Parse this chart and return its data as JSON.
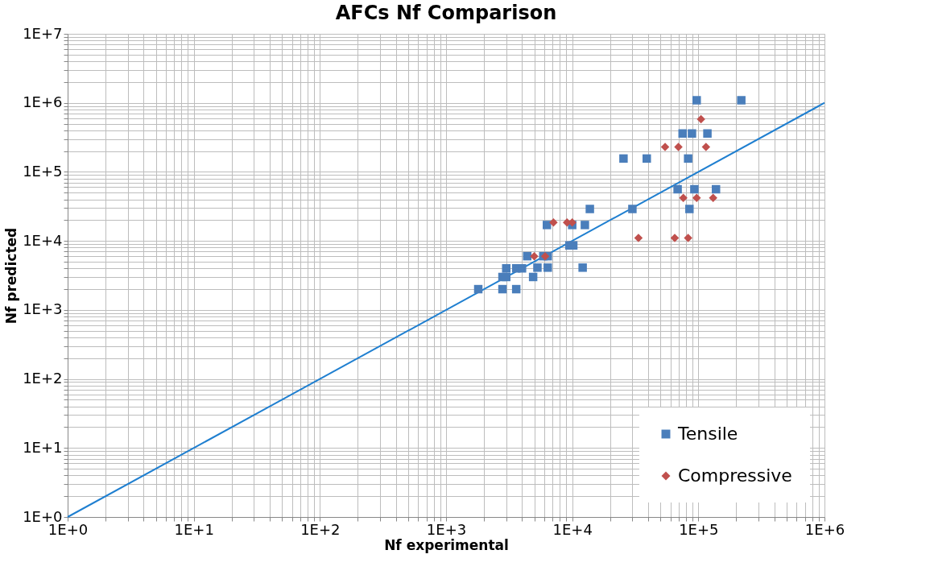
{
  "chart_data": {
    "type": "scatter",
    "title": "AFCs Nf Comparison",
    "xlabel": "Nf experimental",
    "ylabel": "Nf predicted",
    "log": "xy",
    "grid": true,
    "legend": "bottom right",
    "xlim": [
      1,
      1000000
    ],
    "ylim": [
      1,
      10000000
    ],
    "xticks": [
      {
        "value": 1,
        "label": "1E+0"
      },
      {
        "value": 10,
        "label": "1E+1"
      },
      {
        "value": 100,
        "label": "1E+2"
      },
      {
        "value": 1000,
        "label": "1E+3"
      },
      {
        "value": 10000,
        "label": "1E+4"
      },
      {
        "value": 100000,
        "label": "1E+5"
      },
      {
        "value": 1000000,
        "label": "1E+6"
      }
    ],
    "yticks": [
      {
        "value": 1,
        "label": "1E+0"
      },
      {
        "value": 10,
        "label": "1E+1"
      },
      {
        "value": 100,
        "label": "1E+2"
      },
      {
        "value": 1000,
        "label": "1E+3"
      },
      {
        "value": 10000,
        "label": "1E+4"
      },
      {
        "value": 100000,
        "label": "1E+5"
      },
      {
        "value": 1000000,
        "label": "1E+6"
      },
      {
        "value": 10000000,
        "label": "1E+7"
      }
    ],
    "series": [
      {
        "name": "Tensile",
        "color": "#4a7ebb",
        "marker": "square",
        "x": [
          1800,
          2800,
          3000,
          2800,
          3000,
          3600,
          4000,
          3600,
          4400,
          4900,
          5300,
          5900,
          6400,
          6400,
          6300,
          9500,
          10200,
          12100,
          10000,
          12600,
          13800,
          30000,
          97000,
          219000,
          75000,
          89000,
          118000,
          25500,
          39000,
          83000,
          68500,
          93000,
          138000,
          85000
        ],
        "values": [
          2000,
          3000,
          3000,
          2000,
          4000,
          4000,
          4000,
          2000,
          6000,
          3000,
          4100,
          6000,
          6000,
          4100,
          17000,
          8600,
          8600,
          4100,
          17000,
          17000,
          29000,
          29000,
          1090000,
          1090000,
          360000,
          360000,
          360000,
          156000,
          156000,
          156000,
          56000,
          56000,
          56000,
          29000
        ]
      },
      {
        "name": "Compressive",
        "color": "#c0504d",
        "marker": "diamond",
        "x": [
          5000,
          6100,
          7100,
          9100,
          10000,
          105000,
          54500,
          69500,
          115000,
          76000,
          97000,
          131000,
          33500,
          65000,
          83000
        ],
        "values": [
          6000,
          6000,
          18500,
          18500,
          18500,
          580000,
          230000,
          230000,
          230000,
          42000,
          42000,
          42000,
          11000,
          11000,
          11000
        ]
      },
      {
        "type": "line",
        "color": "#1f7fd0",
        "marker": "none",
        "x": [
          1,
          1000000
        ],
        "values": [
          1,
          1000000
        ]
      }
    ]
  }
}
